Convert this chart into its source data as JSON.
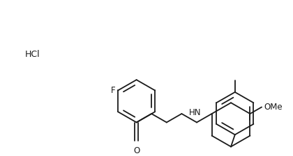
{
  "background_color": "#ffffff",
  "line_color": "#1a1a1a",
  "line_width": 1.3,
  "font_size": 8.5,
  "HCl_text": "HCl",
  "F_text": "F",
  "HN_text": "HN",
  "O_text": "O",
  "OMe_text": "OMe"
}
